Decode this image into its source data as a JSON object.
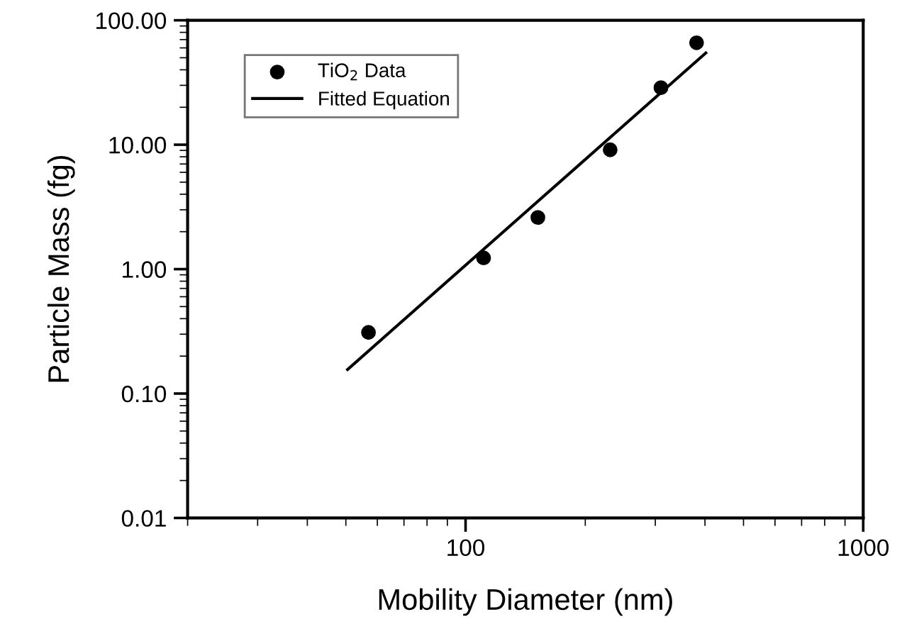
{
  "chart_data": {
    "type": "scatter",
    "xlabel": "Mobility Diameter (nm)",
    "ylabel": "Particle Mass (fg)",
    "log": "xy",
    "xlim": [
      20,
      1000
    ],
    "ylim": [
      0.01,
      100
    ],
    "xticks": [
      100,
      1000
    ],
    "yticks": [
      {
        "value": 0.01,
        "label": "0.01"
      },
      {
        "value": 0.1,
        "label": "0.10"
      },
      {
        "value": 1,
        "label": "1.00"
      },
      {
        "value": 10,
        "label": "10.00"
      },
      {
        "value": 100,
        "label": "100.00"
      }
    ],
    "legend": "top left",
    "grid": false,
    "series": [
      {
        "name": "TiO$_{2}$ Data",
        "marker": "circle",
        "color": "#000000",
        "x": [
          57,
          111,
          152,
          231,
          310,
          381
        ],
        "values": [
          0.31,
          1.23,
          2.6,
          9.1,
          28.7,
          66
        ]
      },
      {
        "name": "Fitted Equation",
        "type": "line",
        "marker": "none",
        "line_style": "solid",
        "color": "#000000",
        "x": [
          50.5,
          402
        ],
        "values": [
          0.156,
          54.7
        ]
      }
    ]
  }
}
